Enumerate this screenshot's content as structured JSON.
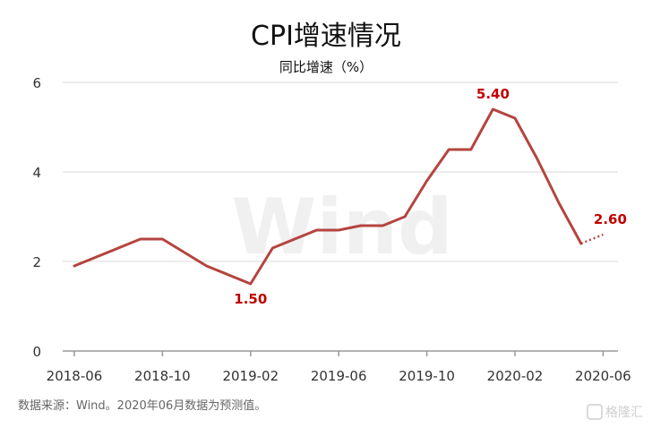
{
  "chart_data": {
    "type": "line",
    "title": "CPI增速情况",
    "subtitle": "同比增速（%）",
    "ylim": [
      0,
      6
    ],
    "yticks": [
      0,
      2,
      4,
      6
    ],
    "xticks": [
      "2018-06",
      "2018-10",
      "2019-02",
      "2019-06",
      "2019-10",
      "2020-02",
      "2020-06"
    ],
    "x": [
      "2018-06",
      "2018-07",
      "2018-08",
      "2018-09",
      "2018-10",
      "2018-11",
      "2018-12",
      "2019-01",
      "2019-02",
      "2019-03",
      "2019-04",
      "2019-05",
      "2019-06",
      "2019-07",
      "2019-08",
      "2019-09",
      "2019-10",
      "2019-11",
      "2019-12",
      "2020-01",
      "2020-02",
      "2020-03",
      "2020-04",
      "2020-05",
      "2020-06"
    ],
    "series": [
      {
        "values": [
          1.9,
          2.1,
          2.3,
          2.5,
          2.5,
          2.2,
          1.9,
          1.7,
          1.5,
          2.3,
          2.5,
          2.7,
          2.7,
          2.8,
          2.8,
          3.0,
          3.8,
          4.5,
          4.5,
          5.4,
          5.2,
          4.3,
          3.3,
          2.4,
          2.6
        ],
        "forecast_from_index": 23,
        "color": "#b5443f"
      }
    ],
    "data_labels": [
      {
        "index": 8,
        "text": "1.50",
        "position": "below"
      },
      {
        "index": 19,
        "text": "5.40",
        "position": "above"
      },
      {
        "index": 24,
        "text": "2.60",
        "position": "above"
      }
    ],
    "grid": true,
    "label_color": "#c00000"
  },
  "watermark": "Wind",
  "source_note": "数据来源：Wind。2020年06月数据为预测值。",
  "brand": "格隆汇"
}
